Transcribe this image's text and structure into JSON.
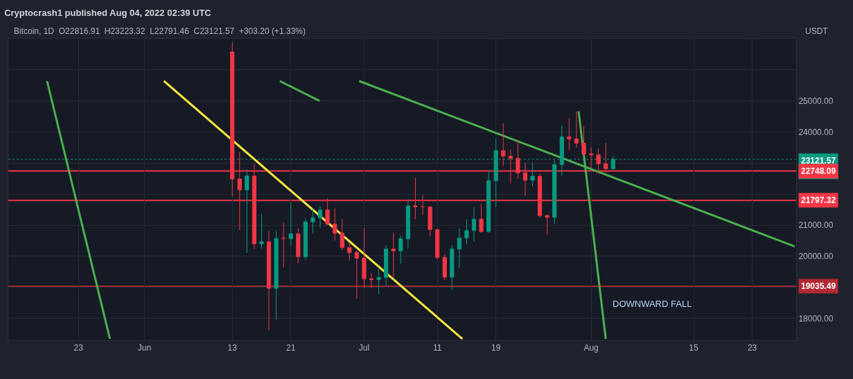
{
  "chart_data": {
    "type": "candlestick",
    "title": "Cryptocrash1 published Aug 04, 2022 02:39 UTC",
    "subtitle": "Bitcoin, 1D  O22816.91  H23223.32  L22791.46  C23121.57  +303.20 (+1.33%)",
    "ylabel": "USDT",
    "x": [
      "2022-06-13",
      "2022-06-14",
      "2022-06-15",
      "2022-06-16",
      "2022-06-17",
      "2022-06-18",
      "2022-06-19",
      "2022-06-20",
      "2022-06-21",
      "2022-06-22",
      "2022-06-23",
      "2022-06-24",
      "2022-06-25",
      "2022-06-26",
      "2022-06-27",
      "2022-06-28",
      "2022-06-29",
      "2022-06-30",
      "2022-07-01",
      "2022-07-02",
      "2022-07-03",
      "2022-07-04",
      "2022-07-05",
      "2022-07-06",
      "2022-07-07",
      "2022-07-08",
      "2022-07-09",
      "2022-07-10",
      "2022-07-11",
      "2022-07-12",
      "2022-07-13",
      "2022-07-14",
      "2022-07-15",
      "2022-07-16",
      "2022-07-17",
      "2022-07-18",
      "2022-07-19",
      "2022-07-20",
      "2022-07-21",
      "2022-07-22",
      "2022-07-23",
      "2022-07-24",
      "2022-07-25",
      "2022-07-26",
      "2022-07-27",
      "2022-07-28",
      "2022-07-29",
      "2022-07-30",
      "2022-07-31",
      "2022-08-01",
      "2022-08-02",
      "2022-08-03",
      "2022-08-04"
    ],
    "ohlc": [
      [
        26574.53,
        26895.84,
        21925.13,
        22487.41
      ],
      [
        22485.27,
        23362.88,
        20846,
        22136.41
      ],
      [
        22136.42,
        22800,
        20111.62,
        22583.72
      ],
      [
        22583.72,
        22980,
        20232,
        20401.31
      ],
      [
        20400.6,
        21365.43,
        20246.66,
        20468.81
      ],
      [
        20468.81,
        20815.95,
        17622,
        18970.79
      ],
      [
        18970.79,
        20815.95,
        17960.41,
        20574
      ],
      [
        20574,
        21090,
        19637.03,
        20573.89
      ],
      [
        20573.9,
        21723,
        20348.4,
        20723.52
      ],
      [
        20723.51,
        20900,
        19770.51,
        19987.99
      ],
      [
        19988,
        21233,
        19890.07,
        21110.13
      ],
      [
        21110.12,
        21558.41,
        20736.72,
        21237.69
      ],
      [
        21237.68,
        21614.5,
        20906.62,
        21491.19
      ],
      [
        21491.18,
        21868,
        21000,
        21038.07
      ],
      [
        21038.08,
        21539.85,
        20510,
        20742.56
      ],
      [
        20742.57,
        21212.1,
        20202.01,
        20281.29
      ],
      [
        20281.28,
        20432.31,
        19854.92,
        20123.01
      ],
      [
        20123,
        20179.08,
        18626,
        19942.21
      ],
      [
        19942.21,
        20918.35,
        18975,
        19279.8
      ],
      [
        19279.8,
        19467.39,
        18977.01,
        19252.81
      ],
      [
        19252.82,
        19647.63,
        18781,
        19315.83
      ],
      [
        19315.83,
        20354.01,
        19055.31,
        20236.71
      ],
      [
        20236.71,
        20750,
        19304.4,
        20175.83
      ],
      [
        20175.84,
        20675.22,
        19761.25,
        20564.51
      ],
      [
        20564.51,
        21838.1,
        20251.68,
        21624.98
      ],
      [
        21624.99,
        22527.37,
        21189.2,
        21594.75
      ],
      [
        21594.75,
        21980,
        21322.12,
        21591.83
      ],
      [
        21592.15,
        21592.15,
        20655,
        20862.47
      ],
      [
        20861.11,
        20868.48,
        19900,
        19963.61
      ],
      [
        19963.61,
        20059.42,
        19240,
        19328.75
      ],
      [
        19331.28,
        20366.61,
        18910.94,
        20234.87
      ],
      [
        20234.87,
        20900,
        19616.07,
        20588.84
      ],
      [
        20588.84,
        21200,
        20382.29,
        20830.04
      ],
      [
        20830.04,
        21588.94,
        20478.61,
        21195.6
      ],
      [
        21195.6,
        21684.54,
        20755.24,
        20798.16
      ],
      [
        20799.58,
        22777.63,
        20762.45,
        22432.58
      ],
      [
        22432.58,
        23800,
        21579.54,
        23396.62
      ],
      [
        23398.48,
        24276.74,
        22906.19,
        23223.3
      ],
      [
        23223.3,
        23442.77,
        22341.46,
        23152.19
      ],
      [
        23152.19,
        23756.49,
        22500,
        22684.83
      ],
      [
        22684.83,
        22999.96,
        21934.57,
        22451.07
      ],
      [
        22448.58,
        23014.64,
        22257.15,
        22579.68
      ],
      [
        22577.13,
        22666,
        21250,
        21310.9
      ],
      [
        21310.9,
        21347.82,
        20706.5,
        21254.67
      ],
      [
        21254.67,
        23112.63,
        21042.53,
        22952.45
      ],
      [
        22954.31,
        24199.72,
        22582.13,
        23842.93
      ],
      [
        23845.25,
        24442.66,
        23414.03,
        23773.75
      ],
      [
        23777.28,
        24668,
        23502.25,
        23643.51
      ],
      [
        23644.2,
        24194.82,
        23227.31,
        23293.32
      ],
      [
        23296.36,
        23509.68,
        22850,
        23268.01
      ],
      [
        23266.9,
        23459.89,
        22654.37,
        22978.12
      ],
      [
        22978.1,
        23647.68,
        22681.22,
        22818.37
      ],
      [
        22816.91,
        23223.32,
        22791.46,
        23121.57
      ]
    ],
    "colors": [
      "#f23645",
      "#f23645",
      "#089981",
      "#f23645",
      "#089981",
      "#f23645",
      "#089981",
      "#f23645",
      "#089981",
      "#f23645",
      "#089981",
      "#089981",
      "#089981",
      "#f23645",
      "#f23645",
      "#f23645",
      "#f23645",
      "#f23645",
      "#f23645",
      "#f23645",
      "#089981",
      "#089981",
      "#f23645",
      "#089981",
      "#089981",
      "#f23645",
      "#f23645",
      "#f23645",
      "#f23645",
      "#f23645",
      "#089981",
      "#089981",
      "#089981",
      "#089981",
      "#f23645",
      "#089981",
      "#089981",
      "#f23645",
      "#f23645",
      "#f23645",
      "#f23645",
      "#089981",
      "#f23645",
      "#f23645",
      "#089981",
      "#089981",
      "#f23645",
      "#f23645",
      "#f23645",
      "#f23645",
      "#f23645",
      "#f23645",
      "#089981"
    ],
    "series": [
      {
        "type": "line",
        "color": "#ffeb3b",
        "x": [
          "2022-06-03T16:00",
          "2022-07-14T10:00"
        ],
        "values": [
          25640,
          17340
        ]
      },
      {
        "type": "line",
        "color": "#4caf50",
        "x": [
          "2022-05-18T17:00",
          "2022-05-27T07:00"
        ],
        "values": [
          25640,
          17340
        ]
      },
      {
        "type": "line",
        "color": "#4caf50",
        "x": [
          "2022-06-19T12:00",
          "2022-06-24T22:00"
        ],
        "values": [
          25640,
          25000
        ]
      },
      {
        "type": "line",
        "color": "#4caf50",
        "x": [
          "2022-06-30T08:00",
          "2022-08-28T19:00"
        ],
        "values": [
          25640,
          20320
        ]
      },
      {
        "type": "line",
        "color": "#4caf50",
        "x": [
          "2022-07-30T07:00",
          "2022-08-03T00:00"
        ],
        "values": [
          24670,
          17340
        ]
      }
    ],
    "ref_lines": [
      {
        "axis": "y",
        "value": 23121.57,
        "label": "23121.57\n21:20:46",
        "color": "#089981",
        "line_style": "dotted"
      },
      {
        "axis": "y",
        "value": 22748.09,
        "label": "22748.09",
        "color": "#f23645",
        "line_style": "solid"
      },
      {
        "axis": "y",
        "value": 21797.32,
        "label": "21797.32",
        "color": "#f23645",
        "line_style": "solid"
      },
      {
        "axis": "y",
        "value": 19035.49,
        "label": "19035.49",
        "color": "#b22833",
        "line_style": "solid"
      }
    ],
    "annotations": [
      "DOWNWARD FALL"
    ],
    "xlim": [
      "2022-05-13T10:00",
      "2022-08-29T00:00"
    ],
    "xticks": [
      {
        "value": "2022-05-23",
        "label": "23"
      },
      {
        "value": "2022-06-01",
        "label": "Jun"
      },
      {
        "value": "2022-06-13",
        "label": "13"
      },
      {
        "value": "2022-06-21",
        "label": "21"
      },
      {
        "value": "2022-07-01",
        "label": "Jul"
      },
      {
        "value": "2022-07-11",
        "label": "11"
      },
      {
        "value": "2022-07-19",
        "label": "19"
      },
      {
        "value": "2022-08-01",
        "label": "Aug"
      },
      {
        "value": "2022-08-15",
        "label": "15"
      },
      {
        "value": "2022-08-23",
        "label": "23"
      }
    ],
    "ylim": [
      17300,
      27000
    ],
    "yticks": [
      {
        "value": 18000,
        "label": "18000.00"
      },
      {
        "value": 19000,
        "label": null
      },
      {
        "value": 20000,
        "label": "20000.00"
      },
      {
        "value": 21000,
        "label": "21000.00"
      },
      {
        "value": 22000,
        "label": null
      },
      {
        "value": 23000,
        "label": null
      },
      {
        "value": 24000,
        "label": "24000.00"
      },
      {
        "value": 25000,
        "label": "25000.00"
      },
      {
        "value": 26000,
        "label": null
      }
    ],
    "grid": true
  }
}
